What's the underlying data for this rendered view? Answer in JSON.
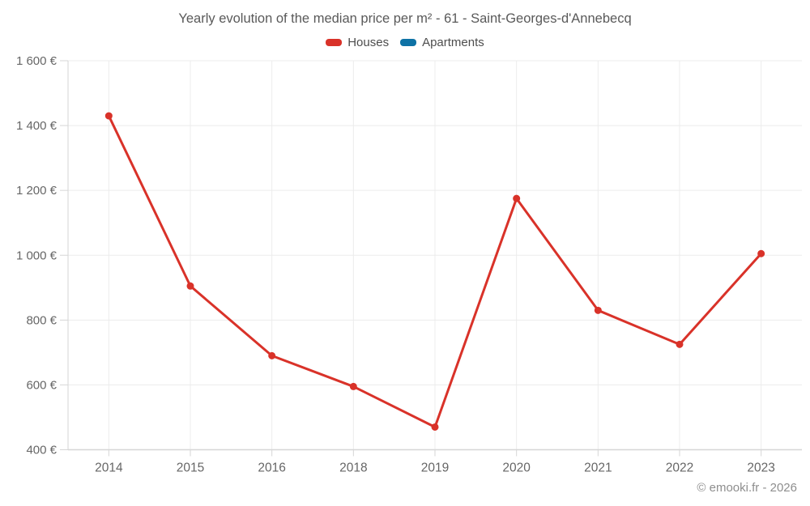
{
  "header": {
    "title": "Yearly evolution of the median price per m² - 61 - Saint-Georges-d'Annebecq"
  },
  "legend": {
    "items": [
      {
        "label": "Houses",
        "color": "#d93229"
      },
      {
        "label": "Apartments",
        "color": "#0e72a5"
      }
    ]
  },
  "footer": {
    "credit": "© emooki.fr - 2026"
  },
  "chart_data": {
    "type": "line",
    "title": "Yearly evolution of the median price per m² - 61 - Saint-Georges-d'Annebecq",
    "categories": [
      "2014",
      "2015",
      "2016",
      "2018",
      "2019",
      "2020",
      "2021",
      "2022",
      "2023"
    ],
    "series": [
      {
        "name": "Houses",
        "color": "#d93229",
        "values": [
          1430,
          905,
          690,
          595,
          470,
          1175,
          830,
          725,
          1005
        ]
      },
      {
        "name": "Apartments",
        "color": "#0e72a5",
        "values": []
      }
    ],
    "xlabel": "",
    "ylabel": "",
    "ylim": [
      400,
      1600
    ],
    "y_ticks": [
      1600,
      1400,
      1200,
      1000,
      800,
      600,
      400
    ],
    "y_tick_labels": [
      "1 600 €",
      "1 400 €",
      "1 200 €",
      "1 000 €",
      "800 €",
      "600 €",
      "400 €"
    ],
    "grid": true,
    "legend_position": "top",
    "currency_suffix": " €"
  }
}
